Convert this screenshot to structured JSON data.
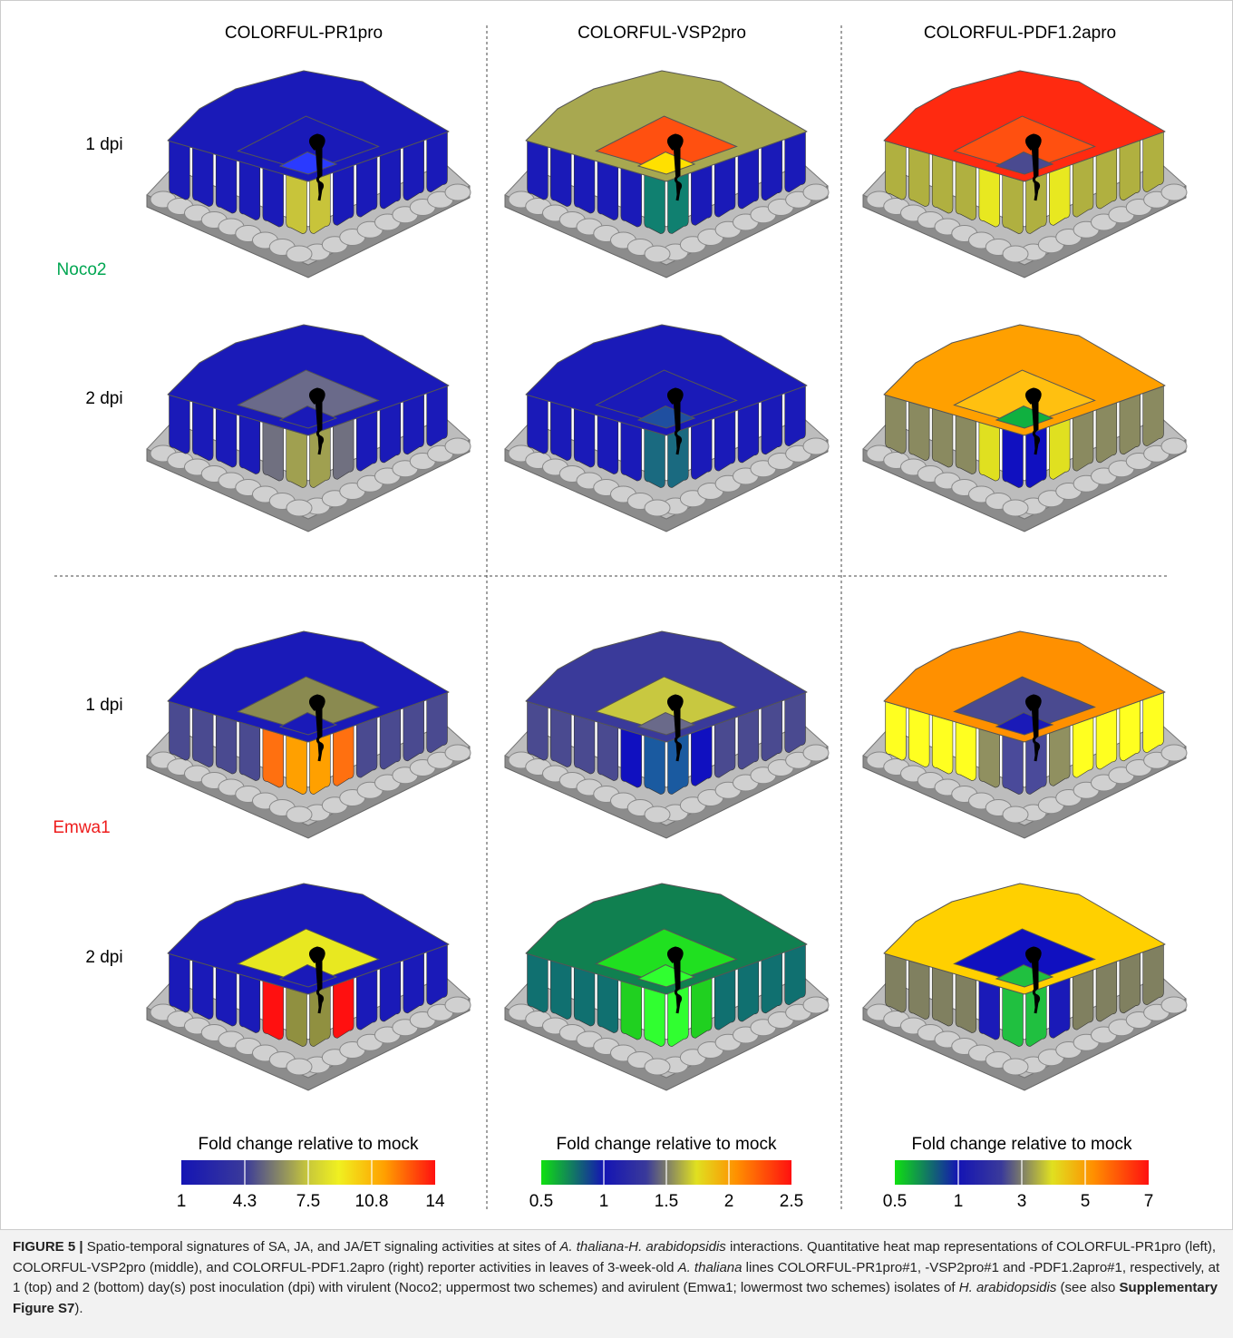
{
  "columns": [
    "COLORFUL-PR1pro",
    "COLORFUL-VSP2pro",
    "COLORFUL-PDF1.2apro"
  ],
  "rows": [
    {
      "isolate": "Noco2",
      "times": [
        "1 dpi",
        "2 dpi"
      ]
    },
    {
      "isolate": "Emwa1",
      "times": [
        "1 dpi",
        "2 dpi"
      ]
    }
  ],
  "legends": [
    {
      "title": "Fold change relative to mock",
      "ticks": [
        "1",
        "4.3",
        "7.5",
        "10.8",
        "14"
      ]
    },
    {
      "title": "Fold change relative to mock",
      "ticks": [
        "0.5",
        "1",
        "1.5",
        "2",
        "2.5"
      ]
    },
    {
      "title": "Fold change relative to mock",
      "ticks": [
        "0.5",
        "1",
        "3",
        "5",
        "7"
      ]
    }
  ],
  "caption": {
    "parts": [
      {
        "text": "FIGURE 5 |",
        "style": "bold"
      },
      {
        "text": " Spatio-temporal signatures of SA, JA, and JA/ET signaling activities at sites of "
      },
      {
        "text": "A. thaliana-H. arabidopsidis",
        "style": "italic"
      },
      {
        "text": " interactions. Quantitative heat map representations of COLORFUL-PR1pro (left), COLORFUL-VSP2pro (middle), and COLORFUL-PDF1.2apro (right) reporter activities in leaves of 3-week-old "
      },
      {
        "text": "A. thaliana",
        "style": "italic"
      },
      {
        "text": " lines COLORFUL-PR1pro#1, -VSP2pro#1 and -PDF1.2apro#1, respectively, at 1 (top) and 2 (bottom) day(s) post inoculation (dpi) with virulent (Noco2; uppermost two schemes) and avirulent (Emwa1; lowermost two schemes) isolates of "
      },
      {
        "text": "H. arabidopsidis",
        "style": "italic"
      },
      {
        "text": " (see also "
      },
      {
        "text": "Supplementary Figure S7",
        "style": "bold"
      },
      {
        "text": ")."
      }
    ]
  }
}
